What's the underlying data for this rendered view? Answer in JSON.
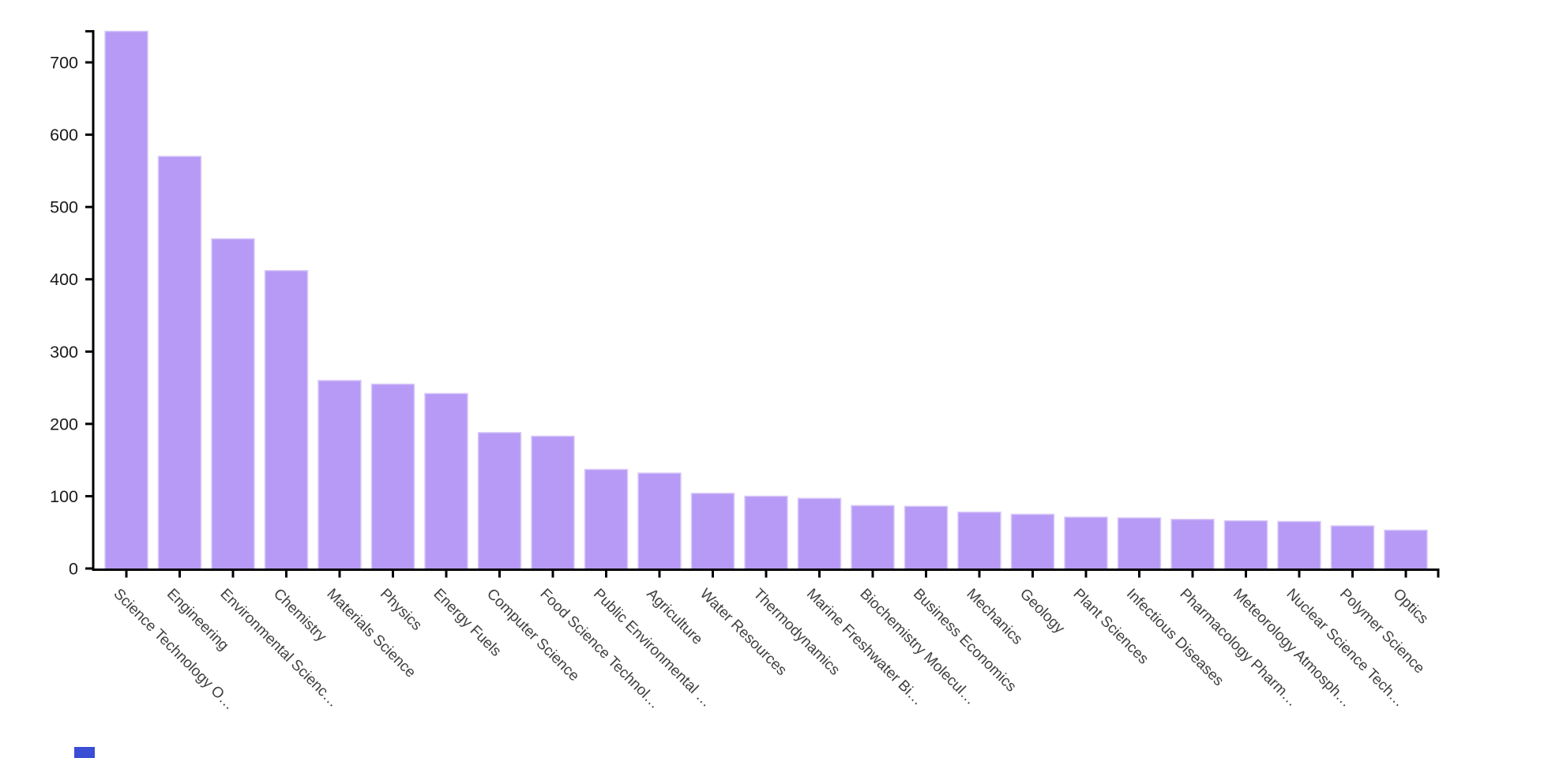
{
  "chart_data": {
    "type": "bar",
    "title": "",
    "xlabel": "",
    "ylabel": "",
    "legend": null,
    "grid": false,
    "ylim": [
      0,
      743
    ],
    "yticks": [
      0,
      100,
      200,
      300,
      400,
      500,
      600,
      700
    ],
    "categories": [
      "Science Technology O…",
      "Engineering",
      "Environmental Scienc…",
      "Chemistry",
      "Materials Science",
      "Physics",
      "Energy Fuels",
      "Computer Science",
      "Food Science Technol…",
      "Public Environmental …",
      "Agriculture",
      "Water Resources",
      "Thermodynamics",
      "Marine Freshwater Bi…",
      "Biochemistry Molecul…",
      "Business Economics",
      "Mechanics",
      "Geology",
      "Plant Sciences",
      "Infectious Diseases",
      "Pharmacology Pharm…",
      "Meteorology Atmosph…",
      "Nuclear Science Tech…",
      "Polymer Science",
      "Optics"
    ],
    "values": [
      743,
      570,
      456,
      412,
      260,
      255,
      242,
      188,
      183,
      137,
      132,
      104,
      100,
      97,
      87,
      86,
      78,
      75,
      71,
      70,
      68,
      66,
      65,
      59,
      53
    ]
  },
  "colors": {
    "bar_fill": "#b79af5",
    "bar_edge": "#d8c9f9",
    "axis": "#000000",
    "y_tick_label": "#1a1a1a",
    "x_tick_label": "#3f3f3f",
    "artifact_blue": "#3a4ed5",
    "background": "#ffffff"
  }
}
